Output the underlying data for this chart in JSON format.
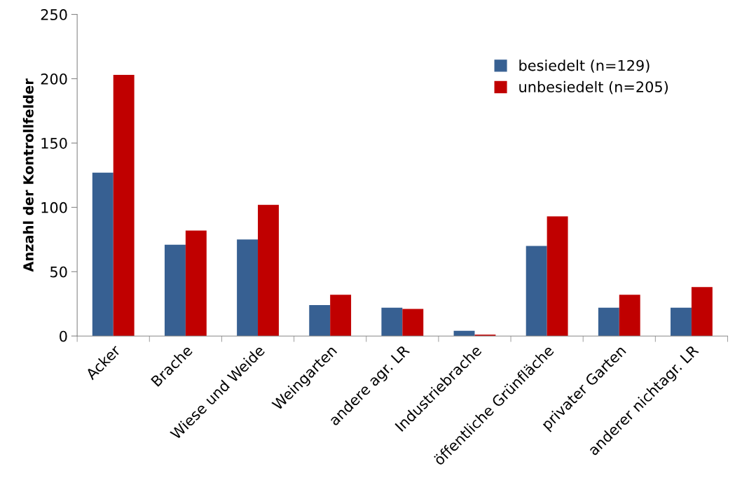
{
  "chart_data": {
    "type": "bar",
    "ylabel": "Anzahl der Kontrollfelder",
    "categories": [
      "Acker",
      "Brache",
      "Wiese und Weide",
      "Weingarten",
      "andere agr. LR",
      "Industriebrache",
      "öffentliche Grünfläche",
      "privater Garten",
      "anderer nichtagr. LR"
    ],
    "series": [
      {
        "name": "besiedelt (n=129)",
        "color": "#376092",
        "values": [
          127,
          71,
          75,
          24,
          22,
          4,
          70,
          22,
          22
        ]
      },
      {
        "name": "unbesiedelt (n=205)",
        "color": "#c00000",
        "values": [
          203,
          82,
          102,
          32,
          21,
          1,
          93,
          32,
          38
        ]
      }
    ],
    "ylim": [
      0,
      250
    ],
    "yticks": [
      0,
      50,
      100,
      150,
      200,
      250
    ],
    "grid": false,
    "legend": "top right"
  }
}
